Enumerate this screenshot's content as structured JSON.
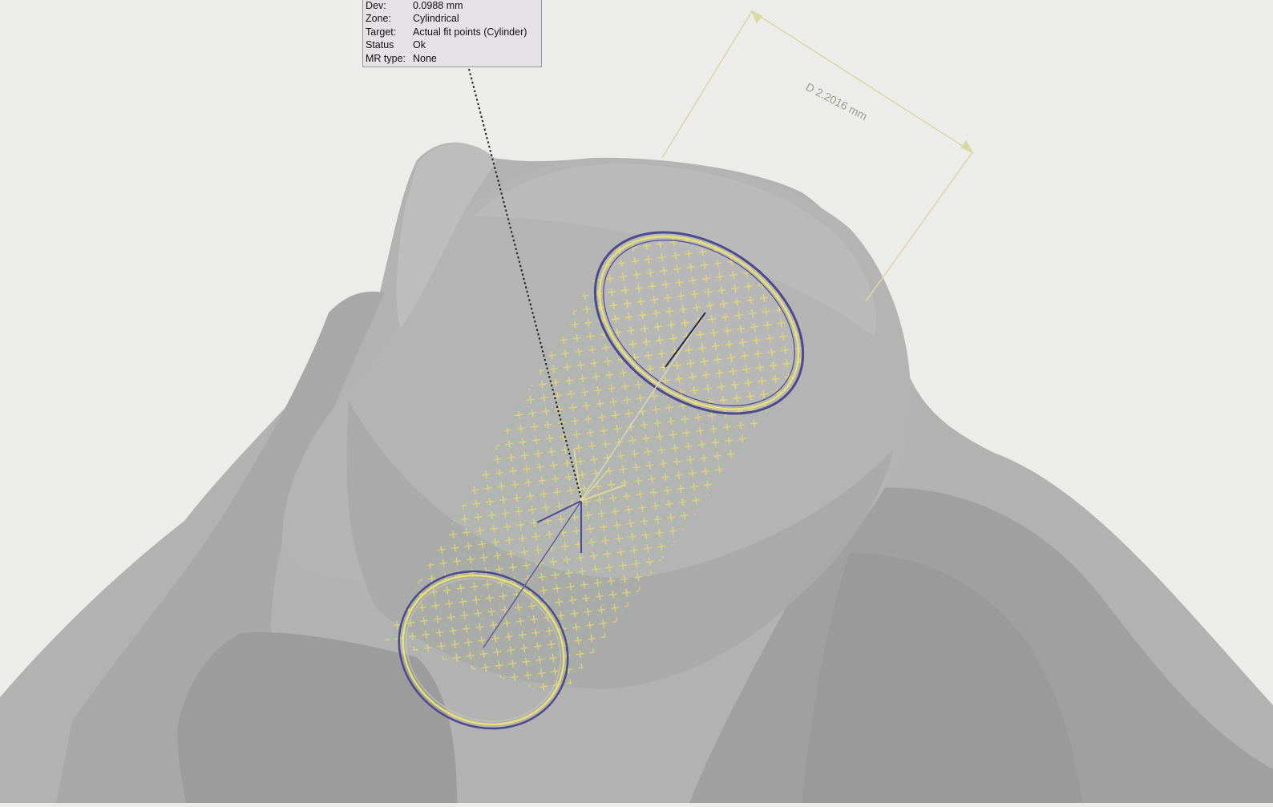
{
  "info_box": {
    "rows": [
      {
        "key": "Dev:",
        "value": "0.0988 mm"
      },
      {
        "key": "Zone:",
        "value": "Cylindrical"
      },
      {
        "key": "Target:",
        "value": "Actual fit points (Cylinder)"
      },
      {
        "key": "Status",
        "value": "Ok"
      },
      {
        "key": "MR type:",
        "value": "None"
      }
    ]
  },
  "dimension": {
    "label": "D 2.2016 mm"
  },
  "colors": {
    "background": "#ececea",
    "model_gray": "#a6a6a6",
    "dimension_line": "#d8d9a6",
    "fit_point_yellow": "#e6d870",
    "fit_point_green": "#8cc88c",
    "circle_blue": "#4a4a8c",
    "circle_yellow": "#e8e070"
  },
  "icons": [
    "axis-arrow-icon"
  ]
}
